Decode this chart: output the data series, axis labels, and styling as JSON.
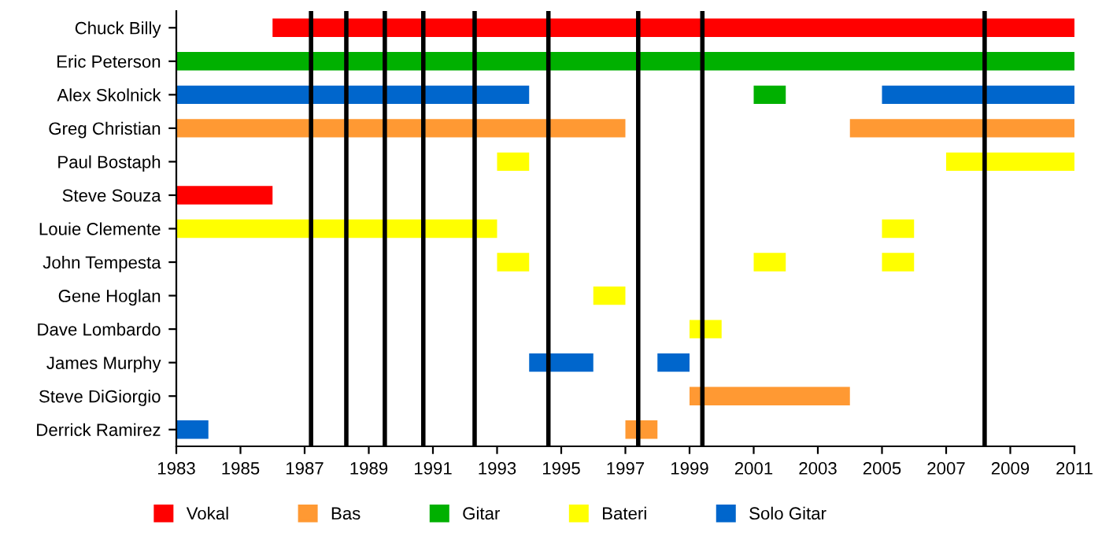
{
  "chart_data": {
    "type": "bar",
    "orientation": "horizontal",
    "categories": [
      "Chuck Billy",
      "Eric Peterson",
      "Alex Skolnick",
      "Greg Christian",
      "Paul Bostaph",
      "Steve Souza",
      "Louie Clemente",
      "John Tempesta",
      "Gene Hoglan",
      "Dave Lombardo",
      "James Murphy",
      "Steve DiGiorgio",
      "Derrick Ramirez"
    ],
    "series": [
      {
        "name": "Vokal",
        "color": "#ff0000",
        "values": [
          25,
          null,
          null,
          null,
          null,
          3,
          null,
          null,
          null,
          null,
          null,
          null,
          null
        ],
        "base": [
          1986,
          null,
          null,
          null,
          null,
          1983,
          null,
          null,
          null,
          null,
          null,
          null,
          null
        ]
      },
      {
        "name": "Bas",
        "color": "#ff9933",
        "values": [
          null,
          null,
          null,
          14,
          null,
          null,
          null,
          null,
          null,
          null,
          null,
          5,
          1
        ],
        "base": [
          null,
          null,
          null,
          1983,
          null,
          null,
          null,
          null,
          null,
          null,
          null,
          1999,
          1997
        ]
      },
      {
        "name": "Gitar",
        "color": "#00b000",
        "values": [
          null,
          28,
          1,
          null,
          null,
          null,
          null,
          null,
          null,
          null,
          null,
          null,
          null
        ],
        "base": [
          null,
          1983,
          2001,
          null,
          null,
          null,
          null,
          null,
          null,
          null,
          null,
          null,
          null
        ]
      },
      {
        "name": "Bateri",
        "color": "#ffff00",
        "values": [
          null,
          null,
          null,
          null,
          1,
          null,
          10,
          1,
          1,
          1,
          null,
          null,
          null
        ],
        "base": [
          null,
          null,
          null,
          null,
          1993,
          null,
          1983,
          1993,
          1996,
          1999,
          null,
          null,
          null
        ]
      },
      {
        "name": "Solo Gitar",
        "color": "#0066cc",
        "values": [
          null,
          null,
          11,
          null,
          null,
          null,
          null,
          null,
          null,
          null,
          2,
          null,
          1
        ],
        "base": [
          null,
          null,
          1983,
          null,
          null,
          null,
          null,
          null,
          null,
          null,
          1994,
          null,
          1983
        ]
      },
      {
        "color": "#ff9933",
        "values": [
          null,
          null,
          null,
          7,
          null,
          null,
          null,
          null,
          null,
          null,
          null,
          null,
          null
        ],
        "base": [
          null,
          null,
          null,
          2004,
          null,
          null,
          null,
          null,
          null,
          null,
          null,
          null,
          null
        ]
      },
      {
        "color": "#ffff00",
        "values": [
          null,
          null,
          null,
          null,
          4,
          null,
          1,
          1,
          null,
          null,
          null,
          null,
          null
        ],
        "base": [
          null,
          null,
          null,
          null,
          2007,
          null,
          2005,
          2001,
          null,
          null,
          null,
          null,
          null
        ]
      },
      {
        "color": "#ffff00",
        "values": [
          null,
          null,
          null,
          null,
          null,
          null,
          null,
          1,
          null,
          null,
          null,
          null,
          null
        ],
        "base": [
          null,
          null,
          null,
          null,
          null,
          null,
          null,
          2005,
          null,
          null,
          null,
          null,
          null
        ]
      },
      {
        "color": "#0066cc",
        "values": [
          null,
          null,
          6,
          null,
          null,
          null,
          null,
          null,
          null,
          null,
          1,
          null,
          null
        ],
        "base": [
          null,
          null,
          2005,
          null,
          null,
          null,
          null,
          null,
          null,
          null,
          1998,
          null,
          null
        ]
      }
    ],
    "xlim": [
      1983,
      2011
    ],
    "xticks": [
      1983,
      1985,
      1987,
      1989,
      1991,
      1993,
      1995,
      1997,
      1999,
      2001,
      2003,
      2005,
      2007,
      2009,
      2011
    ],
    "ref_lines": [
      {
        "axis": "x",
        "value": 1987.2,
        "color": "#000000"
      },
      {
        "axis": "x",
        "value": 1988.3,
        "color": "#000000"
      },
      {
        "axis": "x",
        "value": 1989.5,
        "color": "#000000"
      },
      {
        "axis": "x",
        "value": 1990.7,
        "color": "#000000"
      },
      {
        "axis": "x",
        "value": 1992.3,
        "color": "#000000"
      },
      {
        "axis": "x",
        "value": 1994.6,
        "color": "#000000"
      },
      {
        "axis": "x",
        "value": 1997.4,
        "color": "#000000"
      },
      {
        "axis": "x",
        "value": 1999.4,
        "color": "#000000"
      },
      {
        "axis": "x",
        "value": 2008.2,
        "color": "#000000"
      }
    ],
    "legend": "bottom",
    "grid": false
  }
}
